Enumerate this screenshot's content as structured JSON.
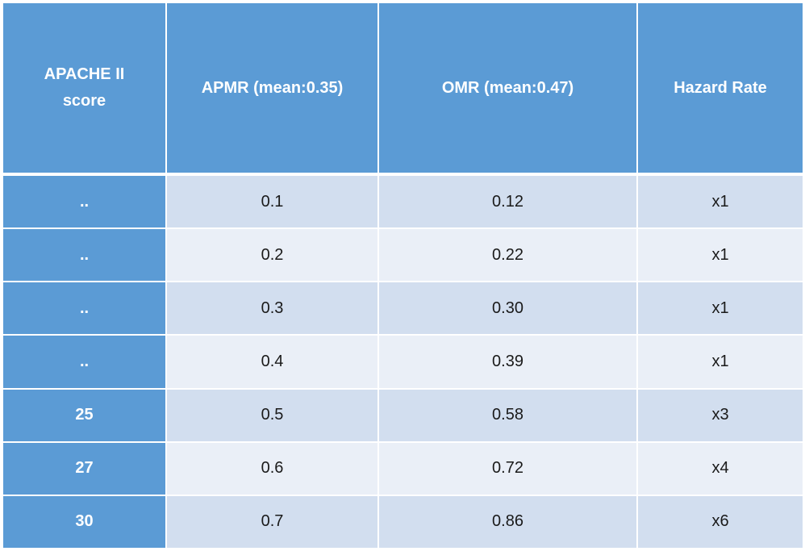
{
  "table": {
    "headers": {
      "score": "APACHE II score",
      "apmr": "APMR (mean:0.35)",
      "omr": "OMR (mean:0.47)",
      "hazard": "Hazard Rate"
    },
    "rows": [
      {
        "score": "..",
        "apmr": "0.1",
        "omr": "0.12",
        "hazard": "x1"
      },
      {
        "score": "..",
        "apmr": "0.2",
        "omr": "0.22",
        "hazard": "x1"
      },
      {
        "score": "..",
        "apmr": "0.3",
        "omr": "0.30",
        "hazard": "x1"
      },
      {
        "score": "..",
        "apmr": "0.4",
        "omr": "0.39",
        "hazard": "x1"
      },
      {
        "score": "25",
        "apmr": "0.5",
        "omr": "0.58",
        "hazard": "x3"
      },
      {
        "score": "27",
        "apmr": "0.6",
        "omr": "0.72",
        "hazard": "x4"
      },
      {
        "score": "30",
        "apmr": "0.7",
        "omr": "0.86",
        "hazard": "x6"
      }
    ]
  },
  "colors": {
    "header_bg": "#5b9bd5",
    "row_odd_bg": "#d2deef",
    "row_even_bg": "#eaeff7"
  }
}
